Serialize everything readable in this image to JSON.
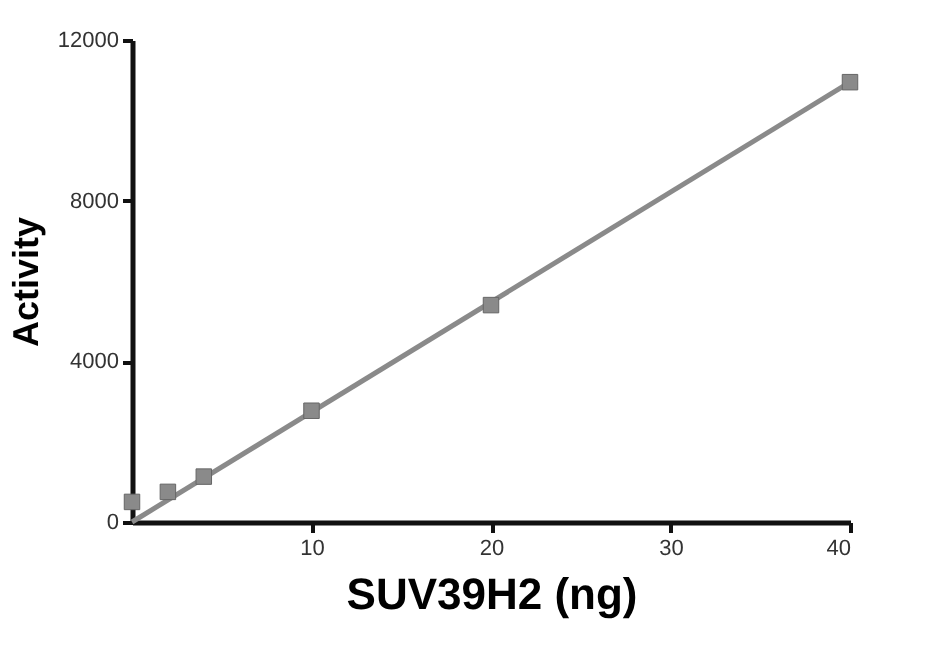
{
  "chart_data": {
    "type": "scatter",
    "xlabel": "SUV39H2 (ng)",
    "ylabel": "Activity",
    "marker": "square",
    "xlim": [
      0,
      40
    ],
    "ylim": [
      0,
      12000
    ],
    "xticks": [
      10,
      20,
      30,
      40
    ],
    "yticks": [
      0,
      4000,
      8000,
      12000
    ],
    "x": [
      0,
      2,
      4,
      10,
      20,
      40
    ],
    "series": [
      {
        "color": "#8a8a8a",
        "values": [
          500,
          750,
          1130,
          2770,
          5400,
          10950
        ]
      },
      {
        "type": "line",
        "color": "#8a8a8a",
        "x": [
          0,
          40
        ],
        "values": [
          0,
          10950
        ],
        "marker": "none"
      }
    ]
  }
}
